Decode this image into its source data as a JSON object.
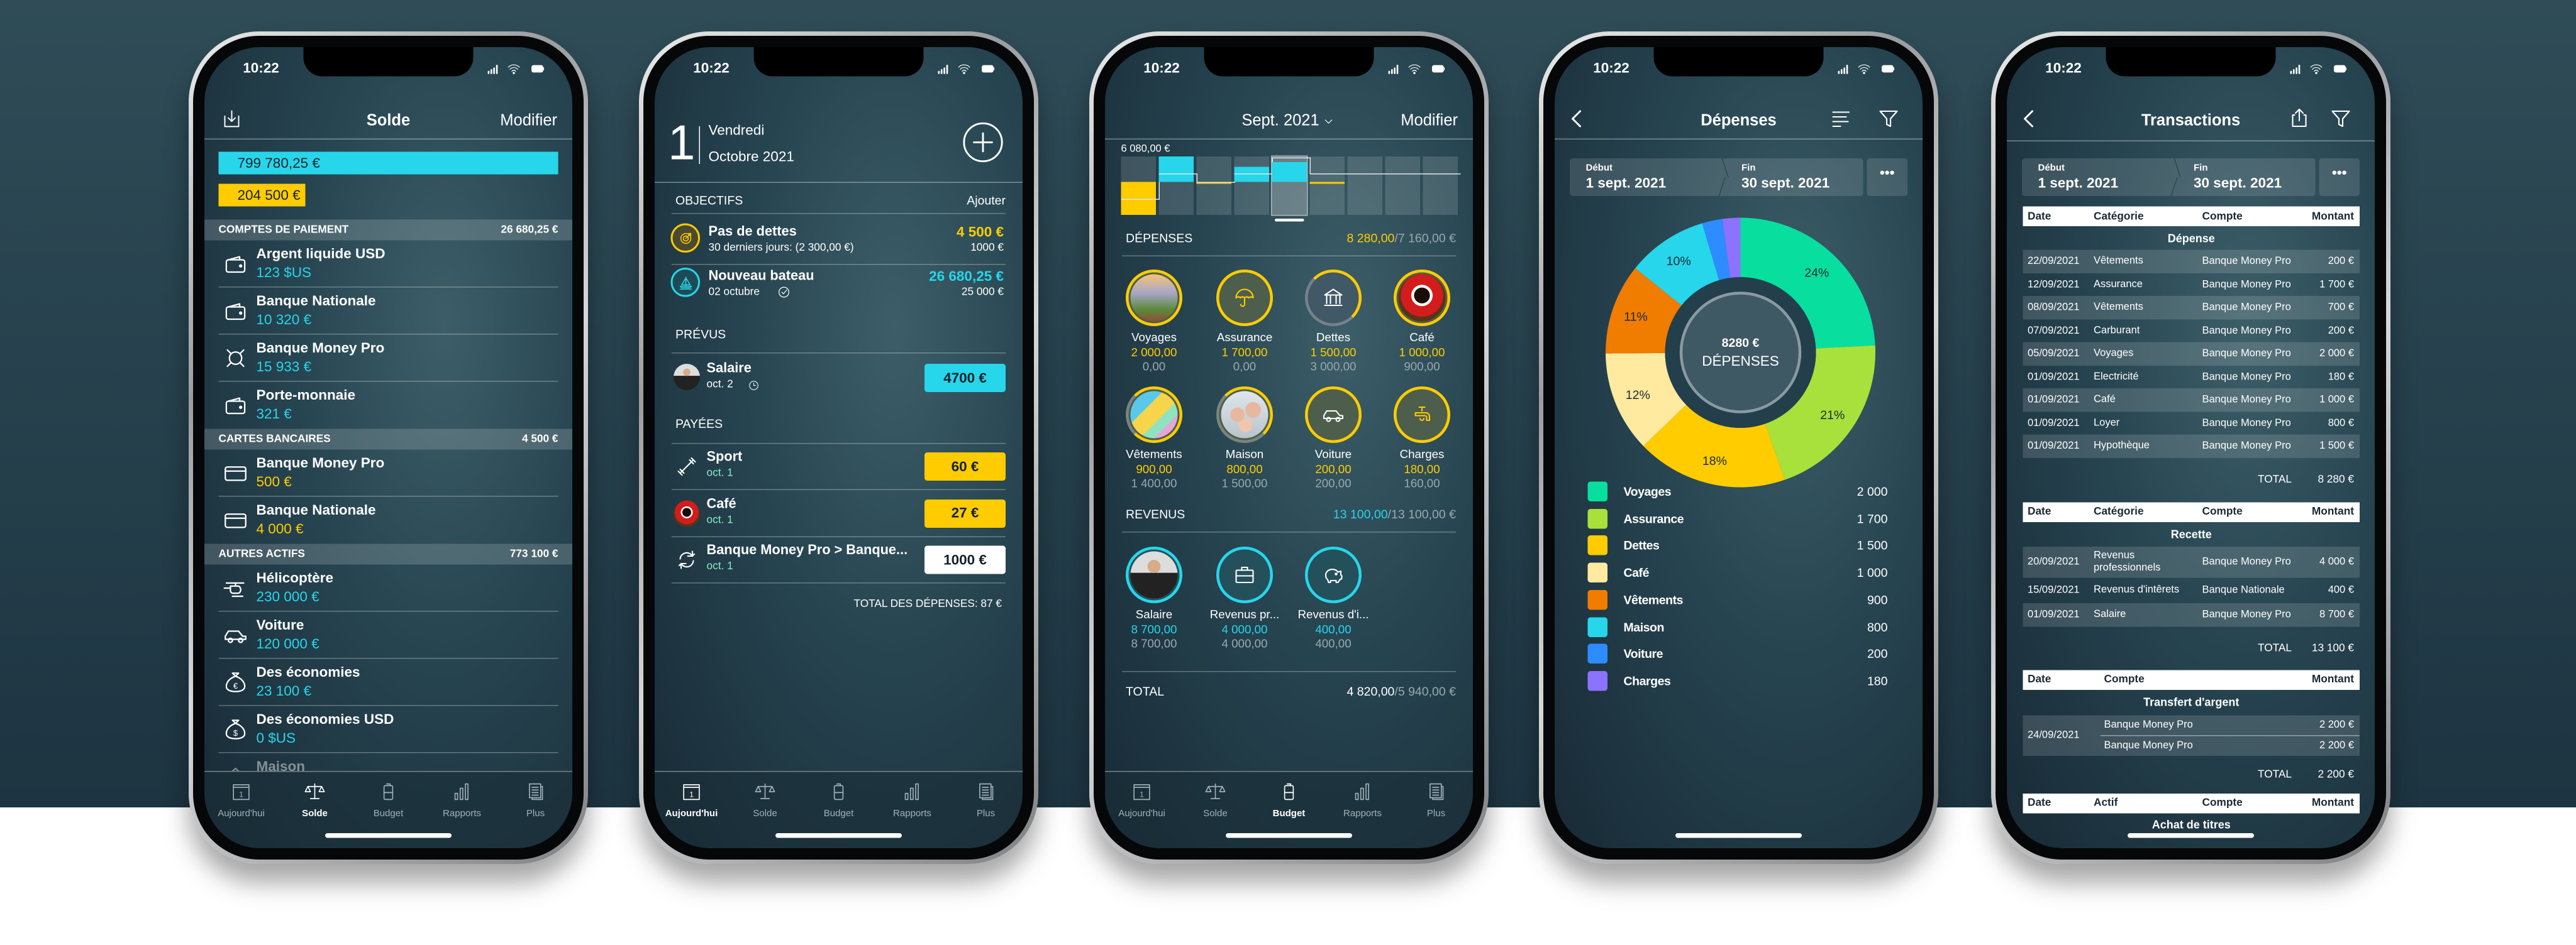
{
  "status": {
    "time": "10:22"
  },
  "tabbar": {
    "items": [
      "Aujourd'hui",
      "Solde",
      "Budget",
      "Rapports",
      "Plus"
    ],
    "icons": [
      "calendar",
      "scale",
      "budget",
      "bar-chart",
      "documents"
    ]
  },
  "colors": {
    "cyan": "#27d6ea",
    "yellow": "#ffcc00",
    "tab_inactive": "#9fb0b8"
  },
  "solde": {
    "active_tab": 1,
    "title": "Solde",
    "edit": "Modifier",
    "total_assets": "799 780,25 €",
    "total_debts": "204 500 €",
    "sections": [
      {
        "name": "COMPTES DE PAIEMENT",
        "total": "26 680,25 €",
        "rows": [
          {
            "name": "Argent liquide USD",
            "value": "123 $US",
            "icon": "wallet",
            "tone": "cy"
          },
          {
            "name": "Banque Nationale",
            "value": "10 320 €",
            "icon": "wallet",
            "tone": "cy"
          },
          {
            "name": "Banque Money Pro",
            "value": "15 933 €",
            "icon": "currency",
            "tone": "cy"
          },
          {
            "name": "Porte-monnaie",
            "value": "321 €",
            "icon": "wallet",
            "tone": "cy"
          }
        ]
      },
      {
        "name": "CARTES BANCAIRES",
        "total": "4 500 €",
        "rows": [
          {
            "name": "Banque Money Pro",
            "value": "500 €",
            "icon": "card",
            "tone": "ye"
          },
          {
            "name": "Banque Nationale",
            "value": "4 000 €",
            "icon": "card",
            "tone": "ye"
          }
        ]
      },
      {
        "name": "AUTRES ACTIFS",
        "total": "773 100 €",
        "rows": [
          {
            "name": "Hélicoptère",
            "value": "230 000 €",
            "icon": "helicopter",
            "tone": "cy"
          },
          {
            "name": "Voiture",
            "value": "120 000 €",
            "icon": "car",
            "tone": "cy"
          },
          {
            "name": "Des économies",
            "value": "23 100 €",
            "icon": "money-bag-euro",
            "tone": "cy"
          },
          {
            "name": "Des économies USD",
            "value": "0 $US",
            "icon": "money-bag-dollar",
            "tone": "cy"
          },
          {
            "name": "Maison",
            "value": "",
            "icon": "house",
            "tone": "cy"
          }
        ]
      }
    ]
  },
  "today": {
    "active_tab": 0,
    "day": "1",
    "weekday": "Vendredi",
    "month_year": "Octobre 2021",
    "goals_title": "OBJECTIFS",
    "goals_add": "Ajouter",
    "goals": [
      {
        "name": "Pas de dettes",
        "sub": "30 derniers jours: (2 300,00 €)",
        "value": "4 500 €",
        "target": "1000 €",
        "tone": "ye",
        "icon": "target"
      },
      {
        "name": "Nouveau bateau",
        "sub": "02 octubre",
        "value": "26 680,25 €",
        "target": "25 000 €",
        "tone": "cy",
        "icon": "sailboat"
      }
    ],
    "planned_title": "PRÉVUS",
    "planned": [
      {
        "name": "Salaire",
        "date": "oct. 2",
        "amount": "4700 €",
        "pill": "#27d6ea"
      }
    ],
    "paid_title": "PAYÉES",
    "paid": [
      {
        "name": "Sport",
        "date": "oct. 1",
        "amount": "60 €",
        "pill": "#ffcc00",
        "icon": "dumbbell"
      },
      {
        "name": "Café",
        "date": "oct. 1",
        "amount": "27 €",
        "pill": "#ffcc00",
        "icon": "coffee-photo"
      },
      {
        "name": "Banque Money Pro > Banque...",
        "date": "oct. 1",
        "amount": "1000 €",
        "pill": "#ffffff",
        "icon": "sync"
      }
    ],
    "total_expenses": "TOTAL DES DÉPENSES: 87 €"
  },
  "budget": {
    "active_tab": 2,
    "period": "Sept. 2021",
    "edit": "Modifier",
    "chart_max_label": "6 080,00 €",
    "chart": {
      "range": [
        -7880,
        6080
      ],
      "actual": [
        -7770,
        6080,
        -450,
        3660,
        4820,
        -110,
        null,
        null,
        null
      ],
      "planned": [
        -4050,
        1970,
        -110,
        1970,
        5940,
        1970,
        1970,
        1970,
        1970
      ],
      "selected": 4
    },
    "expenses_title": "DÉPENSES",
    "expenses_actual": "8 280,00",
    "expenses_planned": "/7 160,00 €",
    "expense_categories": [
      {
        "name": "Voyages",
        "actual": "2 000,00",
        "planned": "0,00",
        "icon": "travel-photo",
        "progress": 1
      },
      {
        "name": "Assurance",
        "actual": "1 700,00",
        "planned": "0,00",
        "icon": "umbrella",
        "progress": 1
      },
      {
        "name": "Dettes",
        "actual": "1 500,00",
        "planned": "3 000,00",
        "icon": "bank",
        "progress": 0.5
      },
      {
        "name": "Café",
        "actual": "1 000,00",
        "planned": "900,00",
        "icon": "coffee-photo",
        "progress": 1
      },
      {
        "name": "Vêtements",
        "actual": "900,00",
        "planned": "1 400,00",
        "icon": "shopping-photo",
        "progress": 0.64
      },
      {
        "name": "Maison",
        "actual": "800,00",
        "planned": "1 500,00",
        "icon": "family-photo",
        "progress": 0.53
      },
      {
        "name": "Voiture",
        "actual": "200,00",
        "planned": "200,00",
        "icon": "car",
        "progress": 1
      },
      {
        "name": "Charges",
        "actual": "180,00",
        "planned": "160,00",
        "icon": "faucet",
        "progress": 1
      }
    ],
    "income_title": "REVENUS",
    "income_actual": "13 100,00",
    "income_planned": "/13 100,00 €",
    "income_categories": [
      {
        "name": "Salaire",
        "actual": "8 700,00",
        "planned": "8 700,00",
        "icon": "person-photo"
      },
      {
        "name": "Revenus pr...",
        "actual": "4 000,00",
        "planned": "4 000,00",
        "icon": "briefcase"
      },
      {
        "name": "Revenus d'i...",
        "actual": "400,00",
        "planned": "400,00",
        "icon": "piggy-bank"
      }
    ],
    "total_label": "TOTAL",
    "total_actual": "4 820,00",
    "total_planned": "/5 940,00 €"
  },
  "report": {
    "title": "Dépenses",
    "start_label": "Début",
    "start": "1 sept. 2021",
    "end_label": "Fin",
    "end": "30 sept. 2021",
    "more": "•••",
    "center_value": "8280 €",
    "center_label": "DÉPENSES",
    "chart_data": {
      "type": "pie",
      "categories": [
        "Voyages",
        "Assurance",
        "Dettes",
        "Café",
        "Vêtements",
        "Maison",
        "Voiture",
        "Charges"
      ],
      "values": [
        2000,
        1700,
        1500,
        1000,
        900,
        800,
        200,
        180
      ],
      "value_labels": [
        "2 000",
        "1 700",
        "1 500",
        "1 000",
        "900",
        "800",
        "200",
        "180"
      ],
      "percent_labels": [
        "24%",
        "21%",
        "18%",
        "12%",
        "11%",
        "10%",
        "",
        ""
      ],
      "colors": [
        "#08df9f",
        "#a8e03c",
        "#ffcc00",
        "#ffeaa0",
        "#f07c00",
        "#27d6ea",
        "#2d8cff",
        "#8b72ff"
      ],
      "legend": "bottom"
    }
  },
  "transactions": {
    "title": "Transactions",
    "start_label": "Début",
    "start": "1 sept. 2021",
    "end_label": "Fin",
    "end": "30 sept. 2021",
    "more": "•••",
    "total_label": "TOTAL",
    "groups": [
      {
        "headers": [
          "Date",
          "Catégorie",
          "Compte",
          "Montant"
        ],
        "title": "Dépense",
        "total": "8 280 €",
        "rows": [
          [
            "22/09/2021",
            "Vêtements",
            "Banque Money Pro",
            "200 €"
          ],
          [
            "12/09/2021",
            "Assurance",
            "Banque Money Pro",
            "1 700 €"
          ],
          [
            "08/09/2021",
            "Vêtements",
            "Banque Money Pro",
            "700 €"
          ],
          [
            "07/09/2021",
            "Carburant",
            "Banque Money Pro",
            "200 €"
          ],
          [
            "05/09/2021",
            "Voyages",
            "Banque Money Pro",
            "2 000 €"
          ],
          [
            "01/09/2021",
            "Electricité",
            "Banque Money Pro",
            "180 €"
          ],
          [
            "01/09/2021",
            "Café",
            "Banque Money Pro",
            "1 000 €"
          ],
          [
            "01/09/2021",
            "Loyer",
            "Banque Money Pro",
            "800 €"
          ],
          [
            "01/09/2021",
            "Hypothèque",
            "Banque Money Pro",
            "1 500 €"
          ]
        ]
      },
      {
        "headers": [
          "Date",
          "Catégorie",
          "Compte",
          "Montant"
        ],
        "title": "Recette",
        "total": "13 100 €",
        "rows": [
          [
            "20/09/2021",
            "Revenus professionnels",
            "Banque Money Pro",
            "4 000 €"
          ],
          [
            "15/09/2021",
            "Revenus d'intêrets",
            "Banque Nationale",
            "400 €"
          ],
          [
            "01/09/2021",
            "Salaire",
            "Banque Money Pro",
            "8 700 €"
          ]
        ]
      },
      {
        "headers": [
          "Date",
          "Compte",
          "Montant"
        ],
        "title": "Transfert d'argent",
        "total": "2 200 €",
        "transfer": {
          "date": "24/09/2021",
          "from": "Banque Money Pro",
          "from_amount": "2 200 €",
          "to": "Banque Money Pro",
          "to_amount": "2 200 €"
        }
      },
      {
        "headers": [
          "Date",
          "Actif",
          "Compte",
          "Montant"
        ],
        "title": "Achat de titres"
      }
    ]
  }
}
